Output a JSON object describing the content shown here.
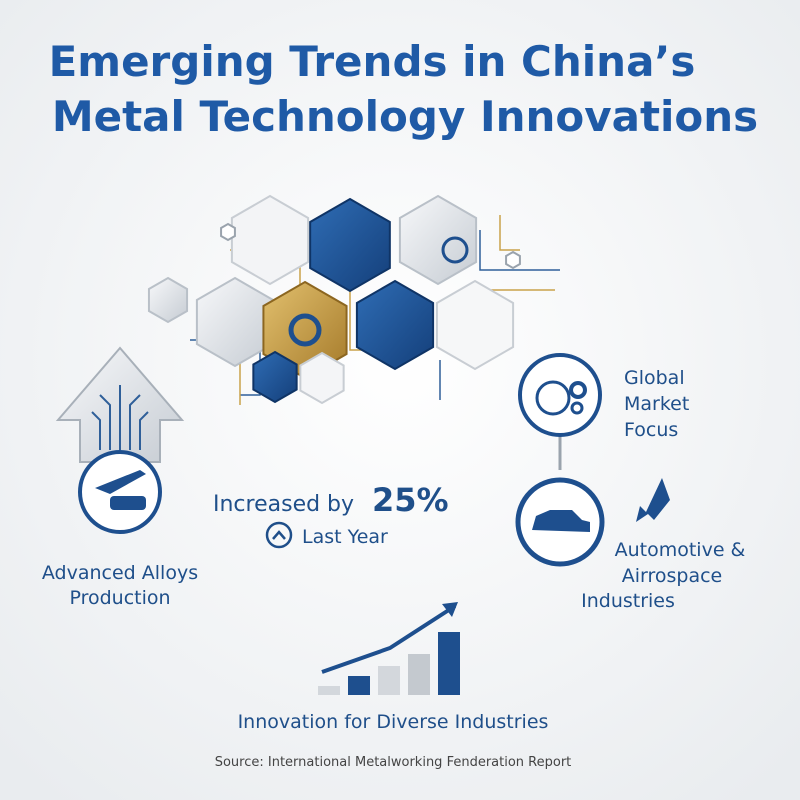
{
  "header": {
    "title_lines": [
      "Emerging Trends in China’s",
      "Metal Technology Innovations"
    ]
  },
  "left": {
    "label_lines": [
      "Advanced Alloys",
      "Production"
    ]
  },
  "center": {
    "prefix": "Increased by",
    "highlight": "25%",
    "caption": "Last Year"
  },
  "right": {
    "top": {
      "label_lines": [
        "Global",
        "Market",
        "Focus"
      ]
    },
    "bottom": {
      "label_lines": [
        "Automotive &",
        "Airrospace",
        "Industries"
      ]
    }
  },
  "footer": {
    "tagline": "Innovation for Diverse Industries",
    "source": "Source: International Metalworking Fenderation Report"
  }
}
